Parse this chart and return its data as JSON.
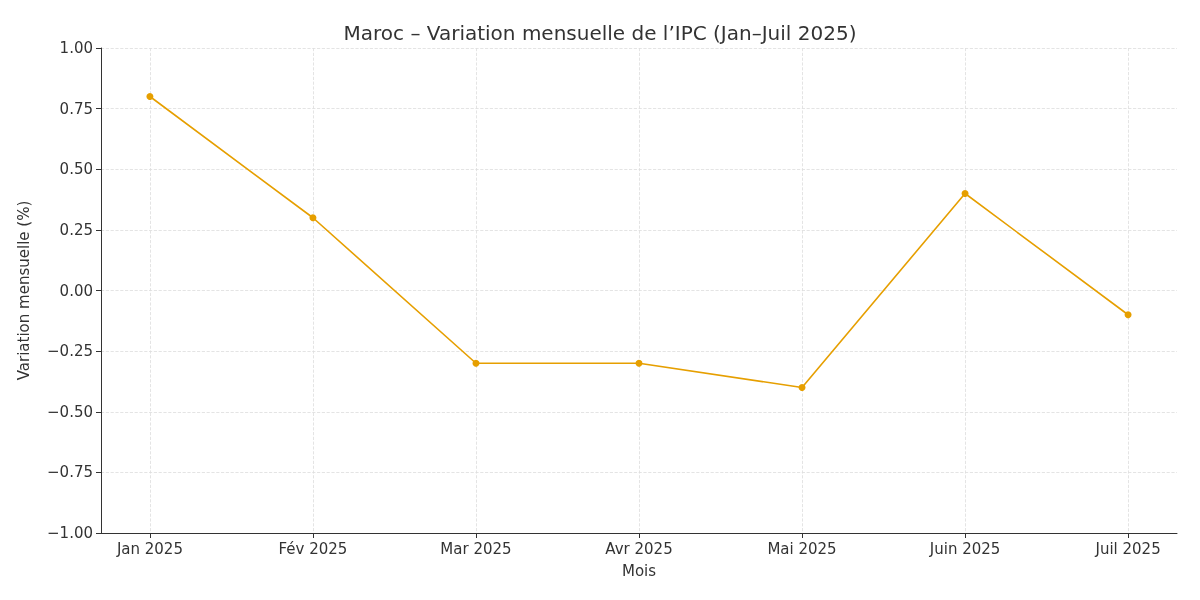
{
  "chart_data": {
    "type": "line",
    "title": "Maroc – Variation mensuelle de l’IPC (Jan–Juil 2025)",
    "xlabel": "Mois",
    "ylabel": "Variation mensuelle (%)",
    "categories": [
      "Jan 2025",
      "Fév 2025",
      "Mar 2025",
      "Avr 2025",
      "Mai 2025",
      "Juin 2025",
      "Juil 2025"
    ],
    "series": [
      {
        "color": "#e69f00",
        "values": [
          0.8,
          0.3,
          -0.3,
          -0.3,
          -0.4,
          0.4,
          -0.1
        ]
      }
    ],
    "ylim": [
      -1,
      1
    ],
    "yticks": [
      {
        "value": -1,
        "label": "−1.00"
      },
      {
        "value": -0.75,
        "label": "−0.75"
      },
      {
        "value": -0.5,
        "label": "−0.50"
      },
      {
        "value": -0.25,
        "label": "−0.25"
      },
      {
        "value": 0,
        "label": "0.00"
      },
      {
        "value": 0.25,
        "label": "0.25"
      },
      {
        "value": 0.5,
        "label": "0.50"
      },
      {
        "value": 0.75,
        "label": "0.75"
      },
      {
        "value": 1,
        "label": "1.00"
      }
    ],
    "grid": true,
    "marker": "circle",
    "line_style": "solid"
  }
}
